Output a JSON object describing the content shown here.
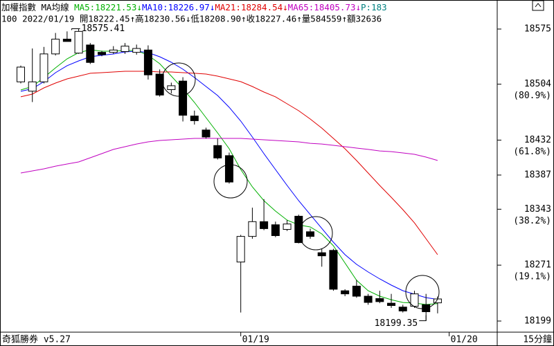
{
  "header": {
    "line1": [
      {
        "text": "加權指數 MA均線 ",
        "color": "#000000"
      },
      {
        "text": "MA5:18221.53↓",
        "color": "#00b000"
      },
      {
        "text": "MA10:18226.97↓",
        "color": "#0000ff"
      },
      {
        "text": "MA21:18284.54↓",
        "color": "#e00000"
      },
      {
        "text": "MA65:18405.73↓",
        "color": "#c000c0"
      },
      {
        "text": "P:183",
        "color": "#008080"
      }
    ],
    "line2": "100 2022/01/19 開18222.45↑高18230.56↓低18208.90↑收18227.46↑量584559↑額32636"
  },
  "footer": {
    "left": "奇狐勝券 v5.27",
    "right": "15分鐘"
  },
  "chart_data": {
    "type": "candlestick",
    "categories": [
      null,
      null,
      null,
      null,
      null,
      null,
      null,
      null,
      null,
      null,
      null,
      null,
      null,
      null,
      null,
      null,
      null,
      null,
      null,
      "01/19",
      null,
      null,
      null,
      null,
      null,
      null,
      null,
      null,
      null,
      null,
      null,
      null,
      null,
      null,
      null,
      null,
      null
    ],
    "next_day_label": "01/20",
    "open": [
      18507,
      18495,
      18507,
      18543,
      18562,
      18544,
      18554.5,
      18545,
      18545,
      18546,
      18545,
      18548,
      18517,
      18497,
      18508,
      18463,
      18445,
      18425,
      18412,
      18275,
      18308,
      18327,
      18323,
      18317,
      18334,
      18314,
      18287,
      18290,
      18238,
      18244,
      18231,
      18228,
      18222,
      18217,
      18218,
      18220,
      18222.45
    ],
    "high": [
      18528,
      18550,
      18552,
      18570,
      18572,
      18575.41,
      18557,
      18547,
      18553,
      18557,
      18555,
      18554,
      18523,
      18506,
      18513,
      18470,
      18448,
      18434,
      18416,
      18310,
      18345,
      18356,
      18327,
      18329,
      18336,
      18318,
      18292,
      18292,
      18240,
      18252,
      18234,
      18238,
      18234,
      18220,
      18238,
      18234,
      18230.56
    ],
    "low": [
      18505,
      18481,
      18505,
      18541,
      18559,
      18543,
      18530,
      18540,
      18543,
      18543,
      18542,
      18510,
      18488,
      18492,
      18456,
      18452,
      18434,
      18407,
      18376,
      18210,
      18305,
      18316,
      18307,
      18315,
      18299,
      18305,
      18269,
      18238,
      18231,
      18229,
      18220,
      18222,
      18216,
      18210,
      18216,
      18199.35,
      18208.9
    ],
    "close": [
      18526,
      18507,
      18543,
      18562,
      18559,
      18572,
      18532,
      18542,
      18548,
      18553,
      18550,
      18516,
      18490,
      18502,
      18464,
      18457,
      18436,
      18409,
      18378,
      18308,
      18327,
      18318,
      18309,
      18324,
      18300,
      18308,
      18283,
      18240,
      18234,
      18231,
      18223,
      18224,
      18219,
      18212,
      18234,
      18211,
      18227.46
    ],
    "up_color": "#ffffff",
    "down_color": "#000000",
    "outline_color": "#000000",
    "series": [
      {
        "name": "MA5",
        "color": "#00b000",
        "values": [
          18496.6,
          18501.0,
          18512.6,
          18525.1,
          18536.7,
          18544.7,
          18548.3,
          18546.5,
          18546.5,
          18547.4,
          18547.4,
          18541.2,
          18530.4,
          18514.4,
          18498.3,
          18480.5,
          18460.9,
          18441.3,
          18420.8,
          18394.1,
          18371.8,
          18354.0,
          18340.6,
          18329.0,
          18322.8,
          18320.1,
          18311.2,
          18296.0,
          18273.7,
          18251.5,
          18238.1,
          18231.0,
          18226.5,
          18222.9,
          18222.1,
          18220.3,
          18221.53
        ]
      },
      {
        "name": "MA10",
        "color": "#0000ff",
        "values": [
          18494.8,
          18498.3,
          18507.3,
          18518.8,
          18527.8,
          18534.0,
          18539.3,
          18541.2,
          18542.9,
          18545.6,
          18546.5,
          18544.7,
          18539.3,
          18532.2,
          18523.3,
          18512.6,
          18501.0,
          18489.4,
          18474.2,
          18456.5,
          18436.0,
          18414.6,
          18394.1,
          18373.6,
          18354.0,
          18336.1,
          18318.3,
          18300.5,
          18284.5,
          18272.0,
          18262.2,
          18253.3,
          18245.3,
          18238.1,
          18233.6,
          18229.2,
          18226.97
        ]
      },
      {
        "name": "MA21",
        "color": "#e00000",
        "values": [
          18487.7,
          18491.2,
          18499.2,
          18505.5,
          18510.8,
          18514.4,
          18518.0,
          18518.8,
          18519.7,
          18520.6,
          18520.6,
          18520.6,
          18519.7,
          18519.7,
          18518.8,
          18518.0,
          18517.1,
          18514.4,
          18510.8,
          18507.3,
          18501.0,
          18493.9,
          18487.7,
          18478.7,
          18469.8,
          18459.1,
          18447.5,
          18434.2,
          18420.8,
          18405.7,
          18389.6,
          18373.6,
          18358.4,
          18342.4,
          18325.4,
          18305.0,
          18284.54
        ]
      },
      {
        "name": "MA65",
        "color": "#c000c0",
        "values": [
          18389.6,
          18392.3,
          18395.0,
          18398.5,
          18401.2,
          18403.9,
          18409.2,
          18414.6,
          18420.0,
          18423.5,
          18427.0,
          18429.7,
          18431.5,
          18432.4,
          18433.3,
          18434.2,
          18434.2,
          18434.2,
          18434.2,
          18434.2,
          18433.3,
          18432.4,
          18431.5,
          18430.6,
          18429.7,
          18427.9,
          18427.0,
          18425.3,
          18423.5,
          18421.7,
          18420.0,
          18418.1,
          18417.2,
          18415.5,
          18413.7,
          18410.1,
          18405.73
        ]
      }
    ],
    "ylim": [
      18184.7,
      18612.4
    ],
    "yticks": [
      18575,
      18504,
      18432,
      18387,
      18343,
      18271,
      18199
    ],
    "ytick_notes": [
      null,
      "(80.9%)",
      "(61.8%)",
      null,
      "(38.2%)",
      "(19.1%)",
      null
    ],
    "high_label_index": 5,
    "low_label_index": 35
  }
}
